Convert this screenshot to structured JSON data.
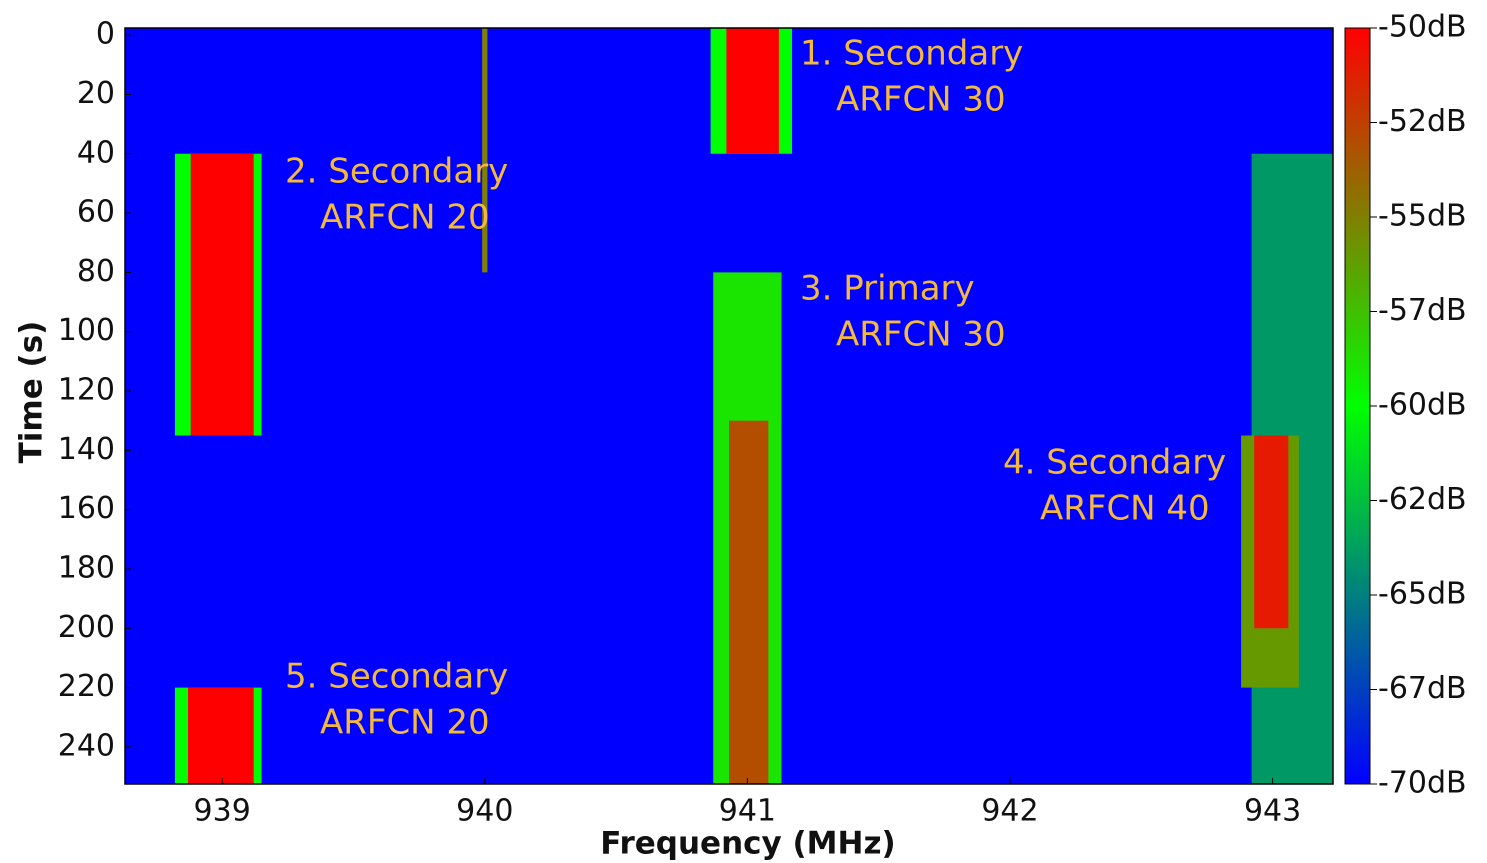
{
  "chart_data": {
    "type": "heatmap",
    "xlabel": "Frequency (MHz)",
    "ylabel": "Time (s)",
    "xlim": [
      938.63,
      943.23
    ],
    "xticks": [
      939,
      940,
      941,
      942,
      943
    ],
    "ylim": [
      252.5,
      -2.4
    ],
    "yticks": [
      0,
      20,
      40,
      60,
      80,
      100,
      120,
      140,
      160,
      180,
      200,
      220,
      240
    ],
    "background_level": -70,
    "blocks": [
      {
        "freq": [
          942.92,
          943.23
        ],
        "time": [
          40,
          252.5
        ],
        "level": -64
      },
      {
        "freq": [
          940.86,
          941.17
        ],
        "time": [
          -2.4,
          40
        ],
        "level": -60
      },
      {
        "freq": [
          940.92,
          941.12
        ],
        "time": [
          -2.4,
          40
        ],
        "level": -50
      },
      {
        "freq": [
          938.82,
          939.15
        ],
        "time": [
          40,
          135
        ],
        "level": -60
      },
      {
        "freq": [
          938.88,
          939.12
        ],
        "time": [
          40,
          135
        ],
        "level": -50
      },
      {
        "freq": [
          939.99,
          940.01
        ],
        "time": [
          -2.4,
          80
        ],
        "level": -55
      },
      {
        "freq": [
          940.87,
          941.13
        ],
        "time": [
          80,
          252.5
        ],
        "level": -59
      },
      {
        "freq": [
          940.93,
          941.08
        ],
        "time": [
          130,
          252.5
        ],
        "level": -53
      },
      {
        "freq": [
          942.88,
          943.1
        ],
        "time": [
          135,
          220
        ],
        "level": -56
      },
      {
        "freq": [
          942.93,
          943.06
        ],
        "time": [
          135,
          200
        ],
        "level": -51
      },
      {
        "freq": [
          938.82,
          939.15
        ],
        "time": [
          220,
          252.5
        ],
        "level": -60
      },
      {
        "freq": [
          938.87,
          939.12
        ],
        "time": [
          220,
          252.5
        ],
        "level": -50
      }
    ],
    "annotations": [
      [
        "1. Secondary",
        "ARFCN 30"
      ],
      [
        "2. Secondary",
        "ARFCN 20"
      ],
      [
        "3. Primary",
        "ARFCN 30"
      ],
      [
        "4. Secondary",
        "ARFCN 40"
      ],
      [
        "5. Secondary",
        "ARFCN 20"
      ]
    ],
    "colorbar": {
      "lim": [
        -70,
        -50
      ],
      "colors": [
        "#0000ff",
        "#00ff00",
        "#ff0000"
      ],
      "ticks": [
        {
          "value": -50,
          "label": "-50dB"
        },
        {
          "value": -52.5,
          "label": "-52dB"
        },
        {
          "value": -55,
          "label": "-55dB"
        },
        {
          "value": -57.5,
          "label": "-57dB"
        },
        {
          "value": -60,
          "label": "-60dB"
        },
        {
          "value": -62.5,
          "label": "-62dB"
        },
        {
          "value": -65,
          "label": "-65dB"
        },
        {
          "value": -67.5,
          "label": "-67dB"
        },
        {
          "value": -70,
          "label": "-70dB"
        }
      ]
    }
  }
}
